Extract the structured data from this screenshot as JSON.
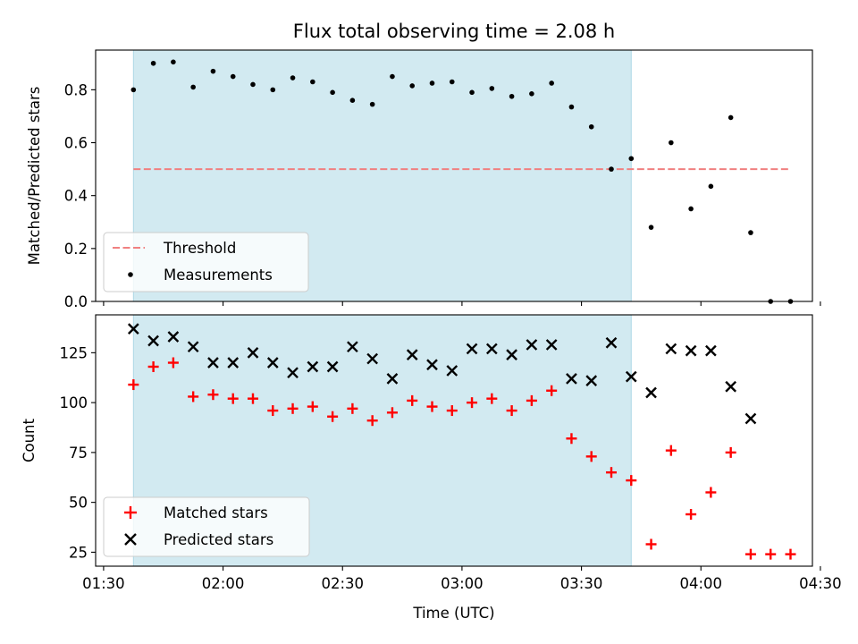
{
  "chart_data": [
    {
      "type": "scatter",
      "title": "Flux total observing time = 2.08 h",
      "ylabel": "Matched/Predicted stars",
      "ylim": [
        0,
        0.95
      ],
      "xlim_minutes": [
        88,
        268
      ],
      "yticks": [
        0.0,
        0.2,
        0.4,
        0.6,
        0.8
      ],
      "ytick_labels": [
        "0.0",
        "0.2",
        "0.4",
        "0.6",
        "0.8"
      ],
      "shaded_interval_minutes": [
        97.5,
        222.5
      ],
      "shaded_color": "#add8e6",
      "threshold": {
        "value": 0.5,
        "x_start": 97.5,
        "x_end": 262.5,
        "color": "#f08080"
      },
      "legend": {
        "position": "lower-left",
        "entries": [
          "Threshold",
          "Measurements"
        ]
      },
      "series": [
        {
          "name": "Measurements",
          "marker": "dot",
          "color": "#000000",
          "x": [
            97.5,
            102.5,
            107.5,
            112.5,
            117.5,
            122.5,
            127.5,
            132.5,
            137.5,
            142.5,
            147.5,
            152.5,
            157.5,
            162.5,
            167.5,
            172.5,
            177.5,
            182.5,
            187.5,
            192.5,
            197.5,
            202.5,
            207.5,
            212.5,
            217.5,
            222.5,
            227.5,
            232.5,
            237.5,
            242.5,
            247.5,
            252.5,
            257.5,
            262.5
          ],
          "y": [
            0.8,
            0.9,
            0.905,
            0.81,
            0.87,
            0.85,
            0.82,
            0.8,
            0.845,
            0.83,
            0.79,
            0.76,
            0.745,
            0.85,
            0.815,
            0.825,
            0.83,
            0.79,
            0.805,
            0.775,
            0.785,
            0.825,
            0.735,
            0.66,
            0.5,
            0.54,
            0.28,
            0.6,
            0.35,
            0.435,
            0.695,
            0.26,
            0.0,
            0.0
          ]
        }
      ]
    },
    {
      "type": "scatter",
      "xlabel": "Time (UTC)",
      "ylabel": "Count",
      "ylim": [
        18,
        144
      ],
      "xlim_minutes": [
        88,
        268
      ],
      "yticks": [
        25,
        50,
        75,
        100,
        125
      ],
      "ytick_labels": [
        "25",
        "50",
        "75",
        "100",
        "125"
      ],
      "xticks_minutes": [
        90,
        120,
        150,
        180,
        210,
        240,
        270
      ],
      "xtick_labels": [
        "01:30",
        "02:00",
        "02:30",
        "03:00",
        "03:30",
        "04:00",
        "04:30"
      ],
      "shaded_interval_minutes": [
        97.5,
        222.5
      ],
      "shaded_color": "#add8e6",
      "legend": {
        "position": "lower-left",
        "entries": [
          "Matched stars",
          "Predicted stars"
        ]
      },
      "series": [
        {
          "name": "Matched stars",
          "marker": "plus",
          "color": "#ff0000",
          "x": [
            97.5,
            102.5,
            107.5,
            112.5,
            117.5,
            122.5,
            127.5,
            132.5,
            137.5,
            142.5,
            147.5,
            152.5,
            157.5,
            162.5,
            167.5,
            172.5,
            177.5,
            182.5,
            187.5,
            192.5,
            197.5,
            202.5,
            207.5,
            212.5,
            217.5,
            222.5,
            227.5,
            232.5,
            237.5,
            242.5,
            247.5,
            252.5,
            257.5,
            262.5
          ],
          "y": [
            109,
            118,
            120,
            103,
            104,
            102,
            102,
            96,
            97,
            98,
            93,
            97,
            91,
            95,
            101,
            98,
            96,
            100,
            102,
            96,
            101,
            106,
            82,
            73,
            65,
            61,
            29,
            76,
            44,
            55,
            75,
            24,
            24,
            24
          ]
        },
        {
          "name": "Predicted stars",
          "marker": "x",
          "color": "#000000",
          "x": [
            97.5,
            102.5,
            107.5,
            112.5,
            117.5,
            122.5,
            127.5,
            132.5,
            137.5,
            142.5,
            147.5,
            152.5,
            157.5,
            162.5,
            167.5,
            172.5,
            177.5,
            182.5,
            187.5,
            192.5,
            197.5,
            202.5,
            207.5,
            212.5,
            217.5,
            222.5,
            227.5,
            232.5,
            237.5,
            242.5,
            247.5,
            252.5
          ],
          "y": [
            137,
            131,
            133,
            128,
            120,
            120,
            125,
            120,
            115,
            118,
            118,
            128,
            122,
            112,
            124,
            119,
            116,
            127,
            127,
            124,
            129,
            129,
            112,
            111,
            130,
            113,
            105,
            127,
            126,
            126,
            108,
            92
          ]
        }
      ]
    }
  ]
}
